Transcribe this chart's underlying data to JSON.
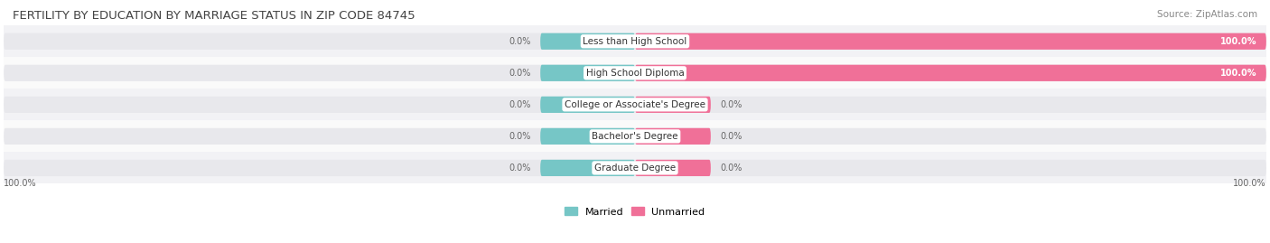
{
  "title": "FERTILITY BY EDUCATION BY MARRIAGE STATUS IN ZIP CODE 84745",
  "source": "Source: ZipAtlas.com",
  "categories": [
    "Less than High School",
    "High School Diploma",
    "College or Associate's Degree",
    "Bachelor's Degree",
    "Graduate Degree"
  ],
  "married_values": [
    0.0,
    0.0,
    0.0,
    0.0,
    0.0
  ],
  "unmarried_values": [
    100.0,
    100.0,
    0.0,
    0.0,
    0.0
  ],
  "married_color": "#76C6C6",
  "unmarried_color": "#F07098",
  "bar_bg_color": "#E8E8EC",
  "row_bg_even": "#F2F2F5",
  "row_bg_odd": "#FAFAFA",
  "axis_max": 100.0,
  "bar_height": 0.52,
  "married_stub_pct": 15.0,
  "unmarried_stub_pct": 12.0,
  "title_fontsize": 9.5,
  "source_fontsize": 7.5,
  "label_fontsize": 7.5,
  "value_fontsize": 7.0,
  "legend_fontsize": 8,
  "bottom_left_label": "100.0%",
  "bottom_right_label": "100.0%"
}
